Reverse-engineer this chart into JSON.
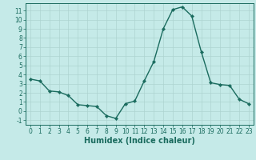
{
  "x": [
    0,
    1,
    2,
    3,
    4,
    5,
    6,
    7,
    8,
    9,
    10,
    11,
    12,
    13,
    14,
    15,
    16,
    17,
    18,
    19,
    20,
    21,
    22,
    23
  ],
  "y": [
    3.5,
    3.3,
    2.2,
    2.1,
    1.7,
    0.7,
    0.6,
    0.5,
    -0.5,
    -0.8,
    0.8,
    1.1,
    3.3,
    5.4,
    9.0,
    11.1,
    11.4,
    10.4,
    6.5,
    3.1,
    2.9,
    2.8,
    1.3,
    0.8
  ],
  "line_color": "#1a6b5e",
  "marker": "D",
  "markersize": 2.2,
  "bg_color": "#c5eae8",
  "grid_color": "#aed4d1",
  "xlabel": "Humidex (Indice chaleur)",
  "ylim": [
    -1.5,
    11.8
  ],
  "xlim": [
    -0.5,
    23.5
  ],
  "yticks": [
    -1,
    0,
    1,
    2,
    3,
    4,
    5,
    6,
    7,
    8,
    9,
    10,
    11
  ],
  "xticks": [
    0,
    1,
    2,
    3,
    4,
    5,
    6,
    7,
    8,
    9,
    10,
    11,
    12,
    13,
    14,
    15,
    16,
    17,
    18,
    19,
    20,
    21,
    22,
    23
  ],
  "tick_fontsize": 5.5,
  "xlabel_fontsize": 7.0,
  "axis_color": "#1a6b5e",
  "linewidth": 1.0,
  "spine_color": "#1a6b5e"
}
